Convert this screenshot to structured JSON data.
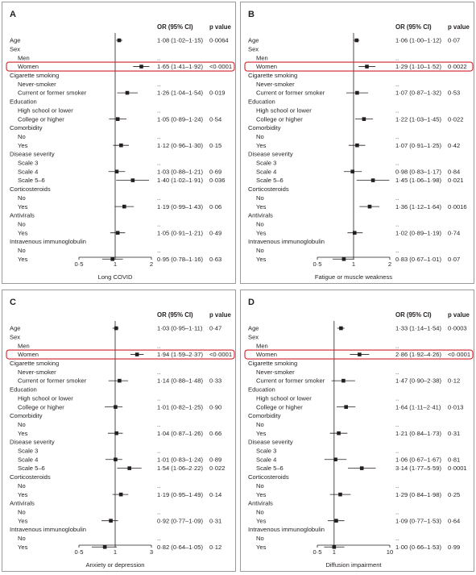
{
  "column_headers": {
    "or": "OR (95% CI)",
    "p": "p value"
  },
  "row_labels": [
    "Age",
    "Sex",
    "Men",
    "Women",
    "Cigarette smoking",
    "Never-smoker",
    "Current or former smoker",
    "Education",
    "High school or lower",
    "College or higher",
    "Comorbidity",
    "No",
    "Yes",
    "Disease severity",
    "Scale 3",
    "Scale 4",
    "Scale 5–6",
    "Corticosteroids",
    "No",
    "Yes",
    "Antivirals",
    "No",
    "Yes",
    "Intravenous immunoglobulin",
    "No",
    "Yes"
  ],
  "row_indent": [
    0,
    0,
    1,
    1,
    0,
    1,
    1,
    0,
    1,
    1,
    0,
    1,
    1,
    0,
    1,
    1,
    1,
    0,
    1,
    1,
    0,
    1,
    1,
    0,
    1,
    1
  ],
  "highlight_row": 3,
  "colors": {
    "text": "#231f20",
    "highlight": "#d2232a",
    "border": "#9a9a9a",
    "line": "#231f20"
  },
  "chart_data": [
    {
      "type": "forest",
      "panel_label": "A",
      "xlabel": "Long COVID",
      "scale": "linear",
      "xlim": [
        0.5,
        2.0
      ],
      "ticks": [
        0.5,
        1,
        2
      ],
      "tick_labels": [
        "0·5",
        "1",
        "2"
      ],
      "ref_line": 1,
      "or": [
        1.08,
        null,
        null,
        1.65,
        null,
        null,
        1.26,
        null,
        null,
        1.05,
        null,
        null,
        1.12,
        null,
        null,
        1.03,
        1.4,
        null,
        null,
        1.19,
        null,
        null,
        1.05,
        null,
        null,
        0.95
      ],
      "lo": [
        1.02,
        null,
        null,
        1.41,
        null,
        null,
        1.04,
        null,
        null,
        0.89,
        null,
        null,
        0.96,
        null,
        null,
        0.88,
        1.02,
        null,
        null,
        0.99,
        null,
        null,
        0.91,
        null,
        null,
        0.78
      ],
      "hi": [
        1.15,
        null,
        null,
        1.92,
        null,
        null,
        1.54,
        null,
        null,
        1.24,
        null,
        null,
        1.3,
        null,
        null,
        1.21,
        1.91,
        null,
        null,
        1.43,
        null,
        null,
        1.21,
        null,
        null,
        1.16
      ],
      "or_text": [
        "1·08 (1·02–1·15)",
        "",
        "..",
        "1·65 (1·41–1·92)",
        "",
        "..",
        "1·26 (1·04–1·54)",
        "",
        "..",
        "1·05 (0·89–1·24)",
        "",
        "..",
        "1·12 (0·96–1·30)",
        "",
        "..",
        "1·03 (0·88–1·21)",
        "1·40 (1·02–1·91)",
        "",
        "..",
        "1·19 (0·99–1·43)",
        "",
        "..",
        "1·05 (0·91–1·21)",
        "",
        "..",
        "0·95 (0·78–1·16)"
      ],
      "p_text": [
        "0·0064",
        "",
        "",
        "<0·0001",
        "",
        "",
        "0·019",
        "",
        "",
        "0·54",
        "",
        "",
        "0·15",
        "",
        "",
        "0·69",
        "0·036",
        "",
        "",
        "0·06",
        "",
        "",
        "0·49",
        "",
        "",
        "0·63"
      ]
    },
    {
      "type": "forest",
      "panel_label": "B",
      "xlabel": "Fatigue or muscle weakness",
      "scale": "linear",
      "xlim": [
        0.5,
        2.0
      ],
      "ticks": [
        0.5,
        1,
        2
      ],
      "tick_labels": [
        "0·5",
        "1",
        "2"
      ],
      "ref_line": 1,
      "or": [
        1.06,
        null,
        null,
        1.29,
        null,
        null,
        1.07,
        null,
        null,
        1.22,
        null,
        null,
        1.07,
        null,
        null,
        0.98,
        1.45,
        null,
        null,
        1.36,
        null,
        null,
        1.02,
        null,
        null,
        0.83
      ],
      "lo": [
        1.0,
        null,
        null,
        1.1,
        null,
        null,
        0.87,
        null,
        null,
        1.03,
        null,
        null,
        0.91,
        null,
        null,
        0.83,
        1.06,
        null,
        null,
        1.12,
        null,
        null,
        0.89,
        null,
        null,
        0.67
      ],
      "hi": [
        1.12,
        null,
        null,
        1.52,
        null,
        null,
        1.32,
        null,
        null,
        1.45,
        null,
        null,
        1.25,
        null,
        null,
        1.17,
        1.98,
        null,
        null,
        1.64,
        null,
        null,
        1.19,
        null,
        null,
        1.01
      ],
      "or_text": [
        "1·06 (1·00–1·12)",
        "",
        "..",
        "1·29 (1·10–1·52)",
        "",
        "..",
        "1·07 (0·87–1·32)",
        "",
        "..",
        "1·22 (1·03–1·45)",
        "",
        "..",
        "1·07 (0·91–1·25)",
        "",
        "..",
        "0·98 (0·83–1·17)",
        "1·45 (1·06–1·98)",
        "",
        "..",
        "1·36 (1·12–1·64)",
        "",
        "..",
        "1·02 (0·89–1·19)",
        "",
        "..",
        "0·83 (0·67–1·01)"
      ],
      "p_text": [
        "0·07",
        "",
        "",
        "0·0022",
        "",
        "",
        "0·53",
        "",
        "",
        "0·022",
        "",
        "",
        "0·42",
        "",
        "",
        "0·84",
        "0·021",
        "",
        "",
        "0·0016",
        "",
        "",
        "0·74",
        "",
        "",
        "0·07"
      ]
    },
    {
      "type": "forest",
      "panel_label": "C",
      "xlabel": "Anxiety or depression",
      "scale": "linear",
      "xlim": [
        0.5,
        3.0
      ],
      "ticks": [
        0.5,
        1,
        3
      ],
      "tick_labels": [
        "0·5",
        "1",
        "3"
      ],
      "ref_line": 1,
      "or": [
        1.03,
        null,
        null,
        1.94,
        null,
        null,
        1.14,
        null,
        null,
        1.01,
        null,
        null,
        1.04,
        null,
        null,
        1.01,
        1.54,
        null,
        null,
        1.19,
        null,
        null,
        0.92,
        null,
        null,
        0.82
      ],
      "lo": [
        0.95,
        null,
        null,
        1.59,
        null,
        null,
        0.88,
        null,
        null,
        0.82,
        null,
        null,
        0.87,
        null,
        null,
        0.83,
        1.06,
        null,
        null,
        0.95,
        null,
        null,
        0.77,
        null,
        null,
        0.64
      ],
      "hi": [
        1.11,
        null,
        null,
        2.37,
        null,
        null,
        1.48,
        null,
        null,
        1.25,
        null,
        null,
        1.26,
        null,
        null,
        1.24,
        2.22,
        null,
        null,
        1.49,
        null,
        null,
        1.09,
        null,
        null,
        1.05
      ],
      "or_text": [
        "1·03 (0·95–1·11)",
        "",
        "..",
        "1·94 (1·59–2·37)",
        "",
        "..",
        "1·14 (0·88–1·48)",
        "",
        "..",
        "1·01 (0·82–1·25)",
        "",
        "..",
        "1·04 (0·87–1·26)",
        "",
        "..",
        "1·01 (0·83–1·24)",
        "1·54 (1·06–2·22)",
        "",
        "..",
        "1·19 (0·95–1·49)",
        "",
        "..",
        "0·92 (0·77–1·09)",
        "",
        "..",
        "0·82 (0·64–1·05)"
      ],
      "p_text": [
        "0·47",
        "",
        "",
        "<0·0001",
        "",
        "",
        "0·33",
        "",
        "",
        "0·90",
        "",
        "",
        "0·66",
        "",
        "",
        "0·89",
        "0·022",
        "",
        "",
        "0·14",
        "",
        "",
        "0·31",
        "",
        "",
        "0·12"
      ]
    },
    {
      "type": "forest",
      "panel_label": "D",
      "xlabel": "Diffusion impairment",
      "scale": "log",
      "xlim": [
        0.5,
        10
      ],
      "ticks": [
        0.5,
        1,
        10
      ],
      "tick_labels": [
        "0·5",
        "1",
        "10"
      ],
      "ref_line": 1,
      "or": [
        1.33,
        null,
        null,
        2.86,
        null,
        null,
        1.47,
        null,
        null,
        1.64,
        null,
        null,
        1.21,
        null,
        null,
        1.06,
        3.14,
        null,
        null,
        1.29,
        null,
        null,
        1.09,
        null,
        null,
        1.0
      ],
      "lo": [
        1.14,
        null,
        null,
        1.92,
        null,
        null,
        0.9,
        null,
        null,
        1.11,
        null,
        null,
        0.84,
        null,
        null,
        0.67,
        1.77,
        null,
        null,
        0.84,
        null,
        null,
        0.77,
        null,
        null,
        0.66
      ],
      "hi": [
        1.54,
        null,
        null,
        4.26,
        null,
        null,
        2.38,
        null,
        null,
        2.41,
        null,
        null,
        1.73,
        null,
        null,
        1.67,
        5.59,
        null,
        null,
        1.98,
        null,
        null,
        1.53,
        null,
        null,
        1.53
      ],
      "or_text": [
        "1·33 (1·14–1·54)",
        "",
        "..",
        "2·86 (1·92–4·26)",
        "",
        "..",
        "1·47 (0·90–2·38)",
        "",
        "..",
        "1·64 (1·11–2·41)",
        "",
        "..",
        "1·21 (0·84–1·73)",
        "",
        "..",
        "1·06 (0·67–1·67)",
        "3·14 (1·77–5·59)",
        "",
        "..",
        "1·29 (0·84–1·98)",
        "",
        "..",
        "1·09 (0·77–1·53)",
        "",
        "..",
        "1·00 (0·66–1·53)"
      ],
      "p_text": [
        "0·0003",
        "",
        "",
        "<0·0001",
        "",
        "",
        "0·12",
        "",
        "",
        "0·013",
        "",
        "",
        "0·31",
        "",
        "",
        "0·81",
        "0·0001",
        "",
        "",
        "0·25",
        "",
        "",
        "0·64",
        "",
        "",
        "0·99"
      ]
    }
  ]
}
